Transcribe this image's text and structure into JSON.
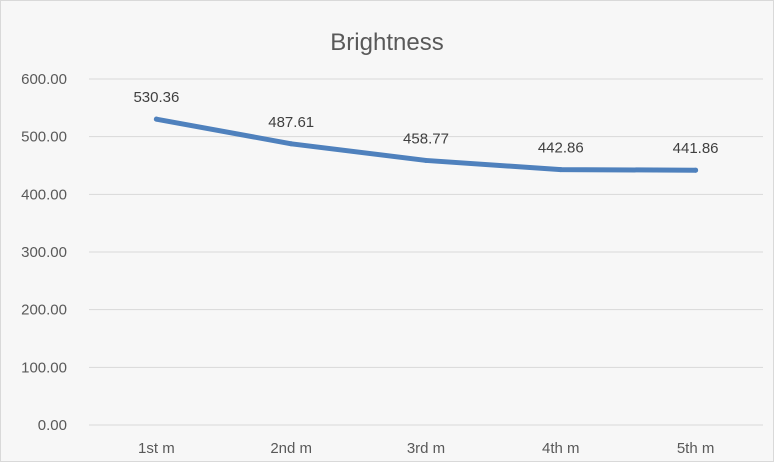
{
  "chart_data": {
    "type": "line",
    "title": "Brightness",
    "xlabel": "",
    "ylabel": "",
    "categories": [
      "1st m",
      "2nd m",
      "3rd m",
      "4th m",
      "5th m"
    ],
    "series": [
      {
        "values": [
          530.36,
          487.61,
          458.77,
          442.86,
          441.86
        ],
        "value_labels": [
          "530.36",
          "487.61",
          "458.77",
          "442.86",
          "441.86"
        ],
        "color": "#4f81bd"
      }
    ],
    "ylim": [
      0,
      600
    ],
    "yticks": [
      0,
      100,
      200,
      300,
      400,
      500,
      600
    ],
    "ytick_labels": [
      "0.00",
      "100.00",
      "200.00",
      "300.00",
      "400.00",
      "500.00",
      "600.00"
    ],
    "grid": true,
    "legend": "none",
    "colors": {
      "background": "#f7f7f7",
      "grid": "#d9d9d9",
      "text": "#595959"
    }
  }
}
